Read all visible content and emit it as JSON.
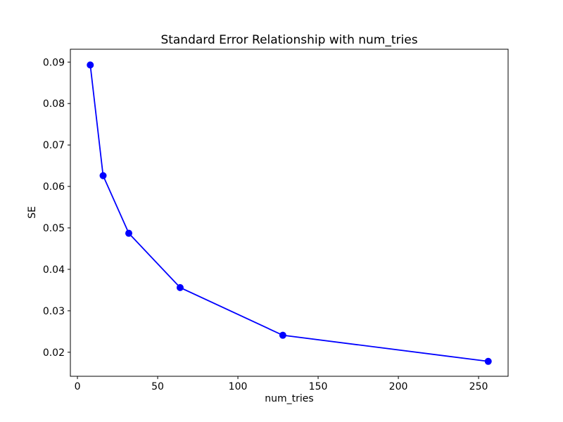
{
  "figure": {
    "background": "#ffffff"
  },
  "chart_data": {
    "type": "line",
    "title": "Standard Error Relationship with num_tries",
    "xlabel": "num_tries",
    "ylabel": "SE",
    "x": [
      8,
      16,
      32,
      64,
      128,
      256
    ],
    "y": [
      0.0893,
      0.0626,
      0.0487,
      0.0356,
      0.0241,
      0.0178
    ],
    "series": [
      {
        "name": "SE",
        "x": [
          8,
          16,
          32,
          64,
          128,
          256
        ],
        "values": [
          0.0893,
          0.0626,
          0.0487,
          0.0356,
          0.0241,
          0.0178
        ]
      }
    ],
    "xlim": [
      -4.4,
      268.4
    ],
    "ylim": [
      0.0142,
      0.0931
    ],
    "x_ticks": [
      0,
      50,
      100,
      150,
      200,
      250
    ],
    "y_ticks": [
      0.02,
      0.03,
      0.04,
      0.05,
      0.06,
      0.07,
      0.08,
      0.09
    ],
    "y_tick_decimals": 2,
    "grid": false,
    "legend": false,
    "line_color": "#0000ff",
    "marker": "circle",
    "marker_color": "#0000ff",
    "text_color": "#000000",
    "spine_color": "#000000"
  }
}
